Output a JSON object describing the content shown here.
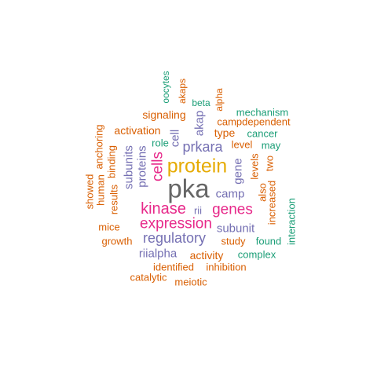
{
  "palette": {
    "green": "#1b9e77",
    "orange": "#d95f02",
    "purple": "#7570b3",
    "magenta": "#e7298a",
    "gold": "#e6ab02",
    "gray": "#666666"
  },
  "words": [
    {
      "text": "pka",
      "color": "gray"
    },
    {
      "text": "protein",
      "color": "gold"
    },
    {
      "text": "kinase",
      "color": "magenta"
    },
    {
      "text": "expression",
      "color": "magenta"
    },
    {
      "text": "genes",
      "color": "magenta"
    },
    {
      "text": "cells",
      "color": "magenta"
    },
    {
      "text": "regulatory",
      "color": "purple"
    },
    {
      "text": "prkara",
      "color": "purple"
    },
    {
      "text": "subunit",
      "color": "purple"
    },
    {
      "text": "camp",
      "color": "purple"
    },
    {
      "text": "proteins",
      "color": "purple"
    },
    {
      "text": "subunits",
      "color": "purple"
    },
    {
      "text": "akap",
      "color": "purple"
    },
    {
      "text": "gene",
      "color": "purple"
    },
    {
      "text": "rii",
      "color": "purple"
    },
    {
      "text": "riialpha",
      "color": "purple"
    },
    {
      "text": "cell",
      "color": "purple"
    },
    {
      "text": "signaling",
      "color": "orange"
    },
    {
      "text": "activation",
      "color": "orange"
    },
    {
      "text": "campdependent",
      "color": "orange"
    },
    {
      "text": "type",
      "color": "orange"
    },
    {
      "text": "level",
      "color": "orange"
    },
    {
      "text": "levels",
      "color": "orange"
    },
    {
      "text": "two",
      "color": "orange"
    },
    {
      "text": "also",
      "color": "orange"
    },
    {
      "text": "increased",
      "color": "orange"
    },
    {
      "text": "binding",
      "color": "orange"
    },
    {
      "text": "anchoring",
      "color": "orange"
    },
    {
      "text": "human",
      "color": "orange"
    },
    {
      "text": "showed",
      "color": "orange"
    },
    {
      "text": "results",
      "color": "orange"
    },
    {
      "text": "mice",
      "color": "orange"
    },
    {
      "text": "growth",
      "color": "orange"
    },
    {
      "text": "study",
      "color": "orange"
    },
    {
      "text": "activity",
      "color": "orange"
    },
    {
      "text": "identified",
      "color": "orange"
    },
    {
      "text": "inhibition",
      "color": "orange"
    },
    {
      "text": "catalytic",
      "color": "orange"
    },
    {
      "text": "meiotic",
      "color": "orange"
    },
    {
      "text": "akaps",
      "color": "orange"
    },
    {
      "text": "alpha",
      "color": "orange"
    },
    {
      "text": "oocytes",
      "color": "green"
    },
    {
      "text": "beta",
      "color": "green"
    },
    {
      "text": "mechanism",
      "color": "green"
    },
    {
      "text": "cancer",
      "color": "green"
    },
    {
      "text": "may",
      "color": "green"
    },
    {
      "text": "role",
      "color": "green"
    },
    {
      "text": "found",
      "color": "green"
    },
    {
      "text": "complex",
      "color": "green"
    },
    {
      "text": "interaction",
      "color": "green"
    }
  ]
}
